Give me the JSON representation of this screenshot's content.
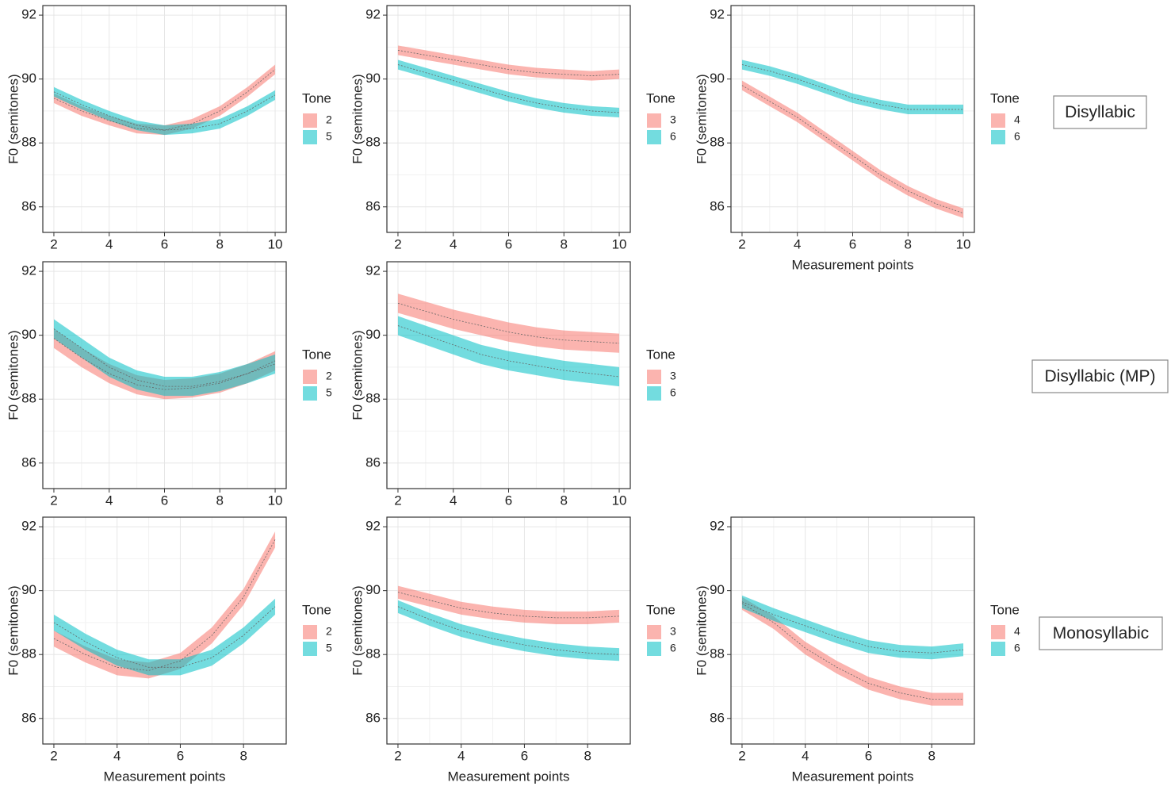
{
  "row_labels": [
    "Disyllabic",
    "Disyllabic (MP)",
    "Monosyllabic"
  ],
  "chart_data": [
    {
      "type": "ribbon-line",
      "y_label": "F0 (semitones)",
      "legend_title": "Tone",
      "x": [
        2,
        3,
        4,
        5,
        6,
        7,
        8,
        9,
        10
      ],
      "xlim": [
        1.6,
        10.4
      ],
      "xticks": [
        2,
        4,
        6,
        8,
        10
      ],
      "ylim": [
        85.2,
        92.3
      ],
      "yticks": [
        86,
        88,
        90,
        92
      ],
      "grid": true,
      "series": [
        {
          "name": "2",
          "color": "#F8766D",
          "band": 0.15,
          "values": [
            89.4,
            89.0,
            88.7,
            88.45,
            88.4,
            88.6,
            89.0,
            89.6,
            90.3
          ]
        },
        {
          "name": "5",
          "color": "#00BFC4",
          "band": 0.15,
          "values": [
            89.6,
            89.2,
            88.85,
            88.55,
            88.4,
            88.45,
            88.6,
            89.0,
            89.5
          ]
        }
      ]
    },
    {
      "type": "ribbon-line",
      "y_label": "F0 (semitones)",
      "legend_title": "Tone",
      "x": [
        2,
        3,
        4,
        5,
        6,
        7,
        8,
        9,
        10
      ],
      "xlim": [
        1.6,
        10.4
      ],
      "xticks": [
        2,
        4,
        6,
        8,
        10
      ],
      "ylim": [
        85.2,
        92.3
      ],
      "yticks": [
        86,
        88,
        90,
        92
      ],
      "grid": true,
      "series": [
        {
          "name": "3",
          "color": "#F8766D",
          "band": 0.15,
          "values": [
            90.9,
            90.75,
            90.6,
            90.45,
            90.3,
            90.2,
            90.15,
            90.1,
            90.15
          ]
        },
        {
          "name": "6",
          "color": "#00BFC4",
          "band": 0.15,
          "values": [
            90.45,
            90.2,
            89.95,
            89.7,
            89.45,
            89.25,
            89.1,
            89.0,
            88.95
          ]
        }
      ]
    },
    {
      "type": "ribbon-line",
      "y_label": "F0 (semitones)",
      "x_label": "Measurement points",
      "legend_title": "Tone",
      "x": [
        2,
        3,
        4,
        5,
        6,
        7,
        8,
        9,
        10
      ],
      "xlim": [
        1.6,
        10.4
      ],
      "xticks": [
        2,
        4,
        6,
        8,
        10
      ],
      "ylim": [
        85.2,
        92.3
      ],
      "yticks": [
        86,
        88,
        90,
        92
      ],
      "grid": true,
      "series": [
        {
          "name": "4",
          "color": "#F8766D",
          "band": 0.15,
          "values": [
            89.8,
            89.3,
            88.8,
            88.2,
            87.6,
            87.0,
            86.5,
            86.1,
            85.8
          ]
        },
        {
          "name": "6",
          "color": "#00BFC4",
          "band": 0.15,
          "values": [
            90.45,
            90.25,
            90.0,
            89.7,
            89.4,
            89.2,
            89.05,
            89.05,
            89.05
          ]
        }
      ]
    },
    {
      "type": "ribbon-line",
      "y_label": "F0 (semitones)",
      "legend_title": "Tone",
      "x": [
        2,
        3,
        4,
        5,
        6,
        7,
        8,
        9,
        10
      ],
      "xlim": [
        1.6,
        10.4
      ],
      "xticks": [
        2,
        4,
        6,
        8,
        10
      ],
      "ylim": [
        85.2,
        92.3
      ],
      "yticks": [
        86,
        88,
        90,
        92
      ],
      "grid": true,
      "series": [
        {
          "name": "2",
          "color": "#F8766D",
          "band": 0.3,
          "values": [
            89.9,
            89.3,
            88.8,
            88.45,
            88.3,
            88.35,
            88.5,
            88.8,
            89.2
          ]
        },
        {
          "name": "5",
          "color": "#00BFC4",
          "band": 0.3,
          "values": [
            90.2,
            89.6,
            89.0,
            88.6,
            88.4,
            88.4,
            88.55,
            88.8,
            89.1
          ]
        }
      ]
    },
    {
      "type": "ribbon-line",
      "y_label": "F0 (semitones)",
      "legend_title": "Tone",
      "x": [
        2,
        3,
        4,
        5,
        6,
        7,
        8,
        9,
        10
      ],
      "xlim": [
        1.6,
        10.4
      ],
      "xticks": [
        2,
        4,
        6,
        8,
        10
      ],
      "ylim": [
        85.2,
        92.3
      ],
      "yticks": [
        86,
        88,
        90,
        92
      ],
      "grid": true,
      "series": [
        {
          "name": "3",
          "color": "#F8766D",
          "band": 0.3,
          "values": [
            91.0,
            90.75,
            90.5,
            90.3,
            90.1,
            89.95,
            89.85,
            89.8,
            89.75
          ]
        },
        {
          "name": "6",
          "color": "#00BFC4",
          "band": 0.3,
          "values": [
            90.3,
            90.0,
            89.7,
            89.4,
            89.2,
            89.05,
            88.9,
            88.8,
            88.7
          ]
        }
      ]
    },
    {
      "type": "ribbon-line",
      "y_label": "F0 (semitones)",
      "x_label": "Measurement points",
      "legend_title": "Tone",
      "x": [
        2,
        3,
        4,
        5,
        6,
        7,
        8,
        9
      ],
      "xlim": [
        1.65,
        9.35
      ],
      "xticks": [
        2,
        4,
        6,
        8
      ],
      "ylim": [
        85.2,
        92.3
      ],
      "yticks": [
        86,
        88,
        90,
        92
      ],
      "grid": true,
      "series": [
        {
          "name": "2",
          "color": "#F8766D",
          "band": 0.25,
          "values": [
            88.5,
            88.0,
            87.6,
            87.5,
            87.8,
            88.6,
            89.8,
            91.6
          ]
        },
        {
          "name": "5",
          "color": "#00BFC4",
          "band": 0.25,
          "values": [
            89.0,
            88.4,
            87.9,
            87.6,
            87.6,
            87.9,
            88.6,
            89.5
          ]
        }
      ]
    },
    {
      "type": "ribbon-line",
      "y_label": "F0 (semitones)",
      "x_label": "Measurement points",
      "legend_title": "Tone",
      "x": [
        2,
        3,
        4,
        5,
        6,
        7,
        8,
        9
      ],
      "xlim": [
        1.65,
        9.35
      ],
      "xticks": [
        2,
        4,
        6,
        8
      ],
      "ylim": [
        85.2,
        92.3
      ],
      "yticks": [
        86,
        88,
        90,
        92
      ],
      "grid": true,
      "series": [
        {
          "name": "3",
          "color": "#F8766D",
          "band": 0.2,
          "values": [
            89.95,
            89.7,
            89.45,
            89.3,
            89.2,
            89.15,
            89.15,
            89.2
          ]
        },
        {
          "name": "6",
          "color": "#00BFC4",
          "band": 0.2,
          "values": [
            89.5,
            89.1,
            88.75,
            88.5,
            88.3,
            88.15,
            88.05,
            88.0
          ]
        }
      ]
    },
    {
      "type": "ribbon-line",
      "y_label": "F0 (semitones)",
      "x_label": "Measurement points",
      "legend_title": "Tone",
      "x": [
        2,
        3,
        4,
        5,
        6,
        7,
        8,
        9
      ],
      "xlim": [
        1.65,
        9.35
      ],
      "xticks": [
        2,
        4,
        6,
        8
      ],
      "ylim": [
        85.2,
        92.3
      ],
      "yticks": [
        86,
        88,
        90,
        92
      ],
      "grid": true,
      "series": [
        {
          "name": "4",
          "color": "#F8766D",
          "band": 0.2,
          "values": [
            89.6,
            89.0,
            88.2,
            87.6,
            87.1,
            86.8,
            86.6,
            86.6
          ]
        },
        {
          "name": "6",
          "color": "#00BFC4",
          "band": 0.2,
          "values": [
            89.65,
            89.25,
            88.9,
            88.55,
            88.25,
            88.1,
            88.05,
            88.15
          ]
        }
      ]
    }
  ]
}
